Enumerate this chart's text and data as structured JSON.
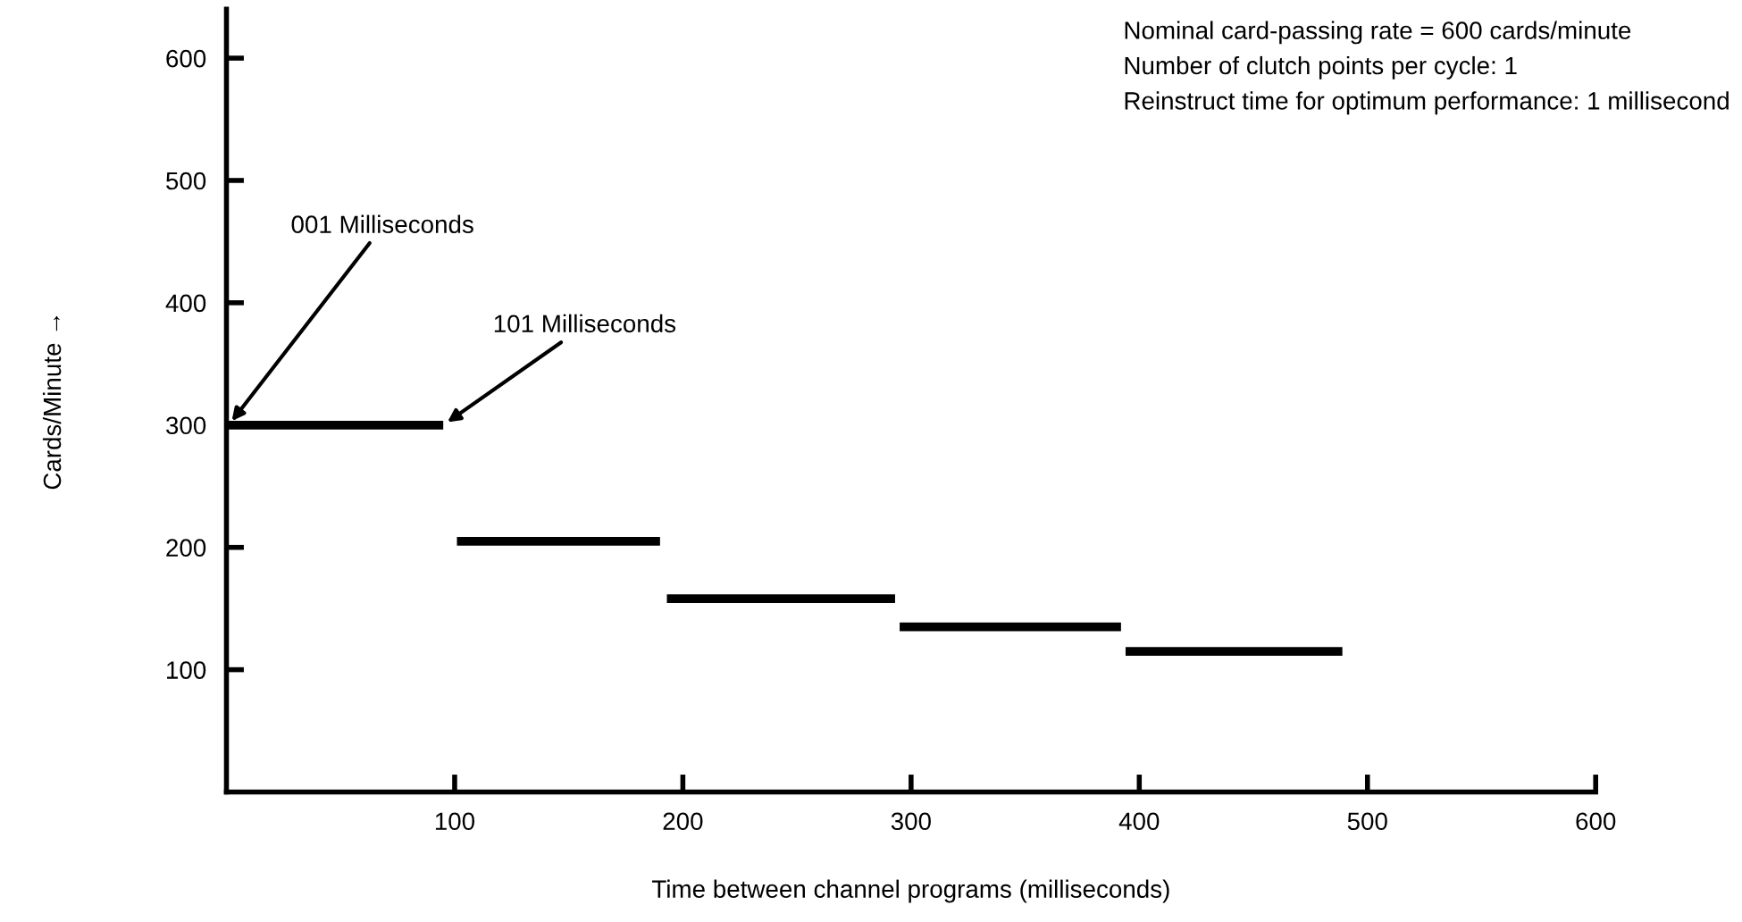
{
  "chart_data": {
    "type": "line",
    "xlabel": "Time between channel programs (milliseconds)",
    "ylabel": "Cards/Minute →",
    "xlim": [
      0,
      600
    ],
    "xticks": [
      100,
      200,
      300,
      400,
      500,
      600
    ],
    "ylim": [
      0,
      640
    ],
    "yticks": [
      100,
      200,
      300,
      400,
      500,
      600
    ],
    "grid": false,
    "legend": false,
    "marker": "none",
    "line_style": "solid",
    "series": [
      {
        "color": "#000000",
        "x": [
          1,
          95
        ],
        "values": [
          300,
          300
        ]
      },
      {
        "color": "#000000",
        "x": [
          101,
          190
        ],
        "values": [
          205,
          205
        ]
      },
      {
        "color": "#000000",
        "x": [
          193,
          293
        ],
        "values": [
          158,
          158
        ]
      },
      {
        "color": "#000000",
        "x": [
          295,
          392
        ],
        "values": [
          135,
          135
        ]
      },
      {
        "color": "#000000",
        "x": [
          394,
          489
        ],
        "values": [
          115,
          115
        ]
      }
    ],
    "annotations": [
      "Nominal card-passing rate = 600 cards/minute",
      "Number of clutch points per cycle: 1",
      "Reinstruct time for optimum performance: 1 millisecond",
      {
        "text": "001 Milliseconds",
        "x": 1,
        "y": 300
      },
      {
        "text": "101 Milliseconds",
        "x": 95,
        "y": 300
      }
    ]
  }
}
